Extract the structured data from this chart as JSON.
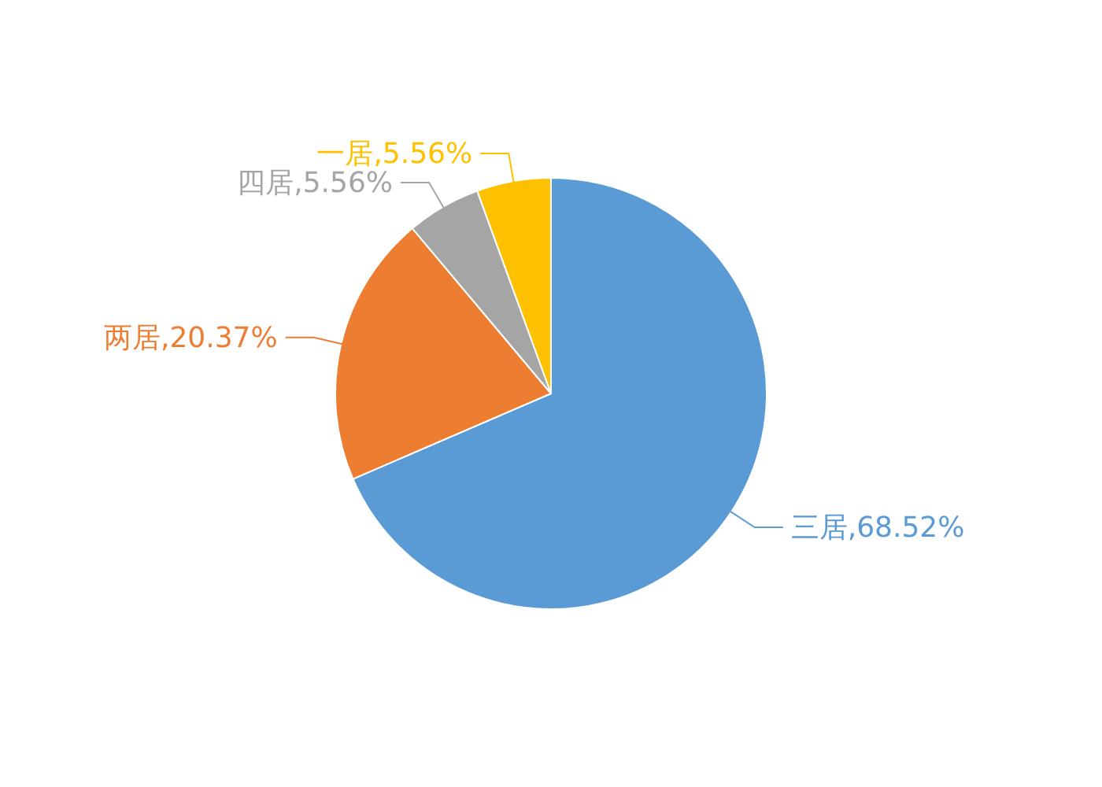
{
  "chart_data": {
    "type": "pie",
    "categories": [
      "三居",
      "两居",
      "四居",
      "一居"
    ],
    "values": [
      68.52,
      20.37,
      5.56,
      5.56
    ],
    "colors": [
      "#5b9bd5",
      "#ed7d31",
      "#a5a5a5",
      "#ffc000"
    ],
    "value_labels": [
      "68.52%",
      "20.37%",
      "5.56%",
      "5.56%"
    ]
  }
}
